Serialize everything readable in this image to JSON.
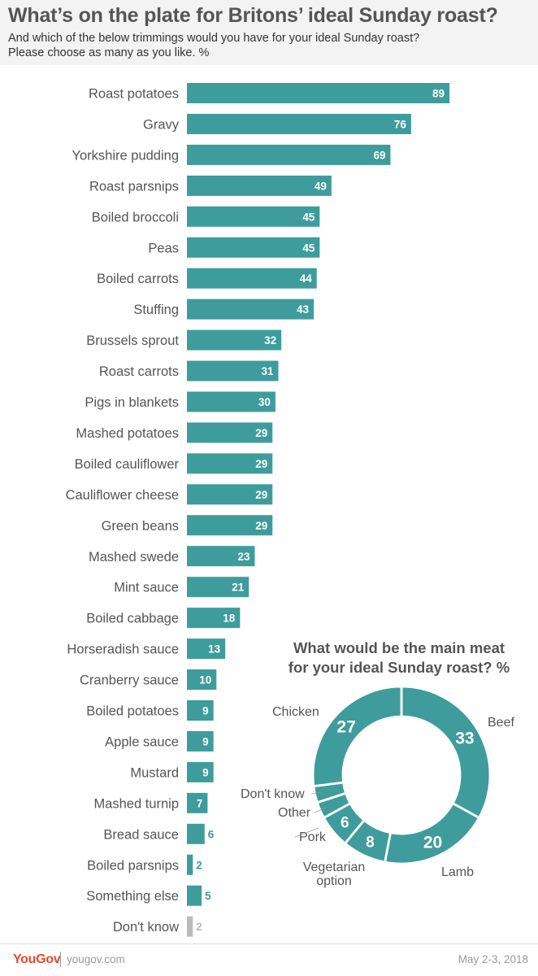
{
  "title": "What’s on the plate for Britons’ ideal Sunday roast?",
  "subtitle_line1": "And which of the below trimmings would you have for your ideal Sunday roast?",
  "subtitle_line2": "Please choose as many as you like. %",
  "colors": {
    "bar": "#3f9c9c",
    "dont_know": "#bbbbbb",
    "label": "#555555",
    "value_text": "#ffffff"
  },
  "chart_data": [
    {
      "type": "bar",
      "orientation": "horizontal",
      "categories": [
        "Roast potatoes",
        "Gravy",
        "Yorkshire pudding",
        "Roast parsnips",
        "Boiled broccoli",
        "Peas",
        "Boiled carrots",
        "Stuffing",
        "Brussels sprout",
        "Roast carrots",
        "Pigs in blankets",
        "Mashed potatoes",
        "Boiled cauliflower",
        "Cauliflower cheese",
        "Green beans",
        "Mashed swede",
        "Mint sauce",
        "Boiled cabbage",
        "Horseradish sauce",
        "Cranberry sauce",
        "Boiled potatoes",
        "Apple sauce",
        "Mustard",
        "Mashed turnip",
        "Bread sauce",
        "Boiled parsnips",
        "Something else",
        "Don't know"
      ],
      "values": [
        89,
        76,
        69,
        49,
        45,
        45,
        44,
        43,
        32,
        31,
        30,
        29,
        29,
        29,
        29,
        23,
        21,
        18,
        13,
        10,
        9,
        9,
        9,
        7,
        6,
        2,
        5,
        2
      ],
      "xlim": [
        0,
        100
      ],
      "grid": false,
      "legend": "none"
    },
    {
      "type": "pie",
      "donut": true,
      "title_line1": "What would be the main meat",
      "title_line2": "for your ideal Sunday roast? %",
      "slices": [
        {
          "label": "Beef",
          "value": 33,
          "value_label": "33"
        },
        {
          "label": "Lamb",
          "value": 20,
          "value_label": "20"
        },
        {
          "label_lines": [
            "Vegetarian",
            "option"
          ],
          "value": 8,
          "value_label": "8"
        },
        {
          "label": "Pork",
          "value": 6,
          "value_label": "6"
        },
        {
          "label": "Other",
          "value": 3,
          "value_label": ""
        },
        {
          "label": "Don't know",
          "value": 3,
          "value_label": ""
        },
        {
          "label": "Chicken",
          "value": 27,
          "value_label": "27"
        }
      ]
    }
  ],
  "footer": {
    "brand": "YouGov",
    "site": "yougov.com",
    "date": "May 2-3, 2018"
  }
}
